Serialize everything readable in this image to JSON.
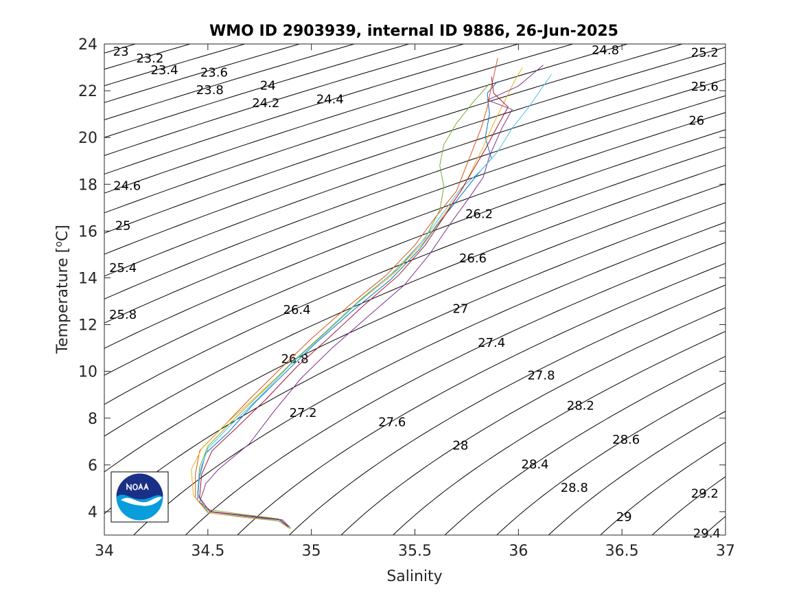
{
  "chart_data": {
    "type": "line",
    "title": "WMO ID 2903939, internal ID 9886, 26-Jun-2025",
    "xlabel": "Salinity",
    "ylabel_main": "Temperature [",
    "ylabel_sup": "o",
    "ylabel_end": "C]",
    "xlim": [
      34,
      37
    ],
    "ylim": [
      3,
      24
    ],
    "xticks": [
      34,
      34.5,
      35,
      35.5,
      36,
      36.5,
      37
    ],
    "xtick_labels": [
      "34",
      "34.5",
      "35",
      "35.5",
      "36",
      "36.5",
      "37"
    ],
    "yticks": [
      4,
      6,
      8,
      10,
      12,
      14,
      16,
      18,
      20,
      22,
      24
    ],
    "ytick_labels": [
      "4",
      "6",
      "8",
      "10",
      "12",
      "14",
      "16",
      "18",
      "20",
      "22",
      "24"
    ],
    "grid": false,
    "isopycnal_labels": [
      {
        "text": "23",
        "s": 34.08,
        "t": 23.65
      },
      {
        "text": "23.2",
        "s": 34.22,
        "t": 23.35
      },
      {
        "text": "23.4",
        "s": 34.29,
        "t": 22.85
      },
      {
        "text": "23.6",
        "s": 34.53,
        "t": 22.75
      },
      {
        "text": "23.8",
        "s": 34.51,
        "t": 22.0
      },
      {
        "text": "24",
        "s": 34.79,
        "t": 22.2
      },
      {
        "text": "24.2",
        "s": 34.78,
        "t": 21.45
      },
      {
        "text": "24.4",
        "s": 35.09,
        "t": 21.6
      },
      {
        "text": "24.8",
        "s": 36.42,
        "t": 23.7
      },
      {
        "text": "25.2",
        "s": 36.9,
        "t": 23.6
      },
      {
        "text": "25.6",
        "s": 36.9,
        "t": 22.15
      },
      {
        "text": "26",
        "s": 36.86,
        "t": 20.7
      },
      {
        "text": "24.6",
        "s": 34.11,
        "t": 17.9
      },
      {
        "text": "25",
        "s": 34.09,
        "t": 16.2
      },
      {
        "text": "25.4",
        "s": 34.09,
        "t": 14.4
      },
      {
        "text": "25.8",
        "s": 34.09,
        "t": 12.4
      },
      {
        "text": "26.2",
        "s": 35.81,
        "t": 16.7
      },
      {
        "text": "26.6",
        "s": 35.78,
        "t": 14.8
      },
      {
        "text": "26.4",
        "s": 34.93,
        "t": 12.6
      },
      {
        "text": "27",
        "s": 35.72,
        "t": 12.65
      },
      {
        "text": "27.4",
        "s": 35.87,
        "t": 11.2
      },
      {
        "text": "26.8",
        "s": 34.92,
        "t": 10.5
      },
      {
        "text": "27.8",
        "s": 36.11,
        "t": 9.8
      },
      {
        "text": "28.2",
        "s": 36.3,
        "t": 8.5
      },
      {
        "text": "27.2",
        "s": 34.96,
        "t": 8.2
      },
      {
        "text": "27.6",
        "s": 35.39,
        "t": 7.8
      },
      {
        "text": "28.6",
        "s": 36.52,
        "t": 7.05
      },
      {
        "text": "28",
        "s": 35.72,
        "t": 6.8
      },
      {
        "text": "28.4",
        "s": 36.08,
        "t": 6.0
      },
      {
        "text": "28.8",
        "s": 36.27,
        "t": 5.0
      },
      {
        "text": "29.2",
        "s": 36.9,
        "t": 4.75
      },
      {
        "text": "29",
        "s": 36.51,
        "t": 3.75
      },
      {
        "text": "29.4",
        "s": 36.91,
        "t": 3.05
      }
    ],
    "series": [
      {
        "color": "#0072BD",
        "points": [
          [
            34.89,
            3.3
          ],
          [
            34.85,
            3.6
          ],
          [
            34.7,
            3.75
          ],
          [
            34.5,
            3.95
          ],
          [
            34.45,
            4.5
          ],
          [
            34.46,
            5.5
          ],
          [
            34.49,
            6.5
          ],
          [
            34.6,
            7.4
          ],
          [
            34.72,
            8.6
          ],
          [
            34.88,
            10.0
          ],
          [
            35.02,
            11.2
          ],
          [
            35.2,
            12.6
          ],
          [
            35.38,
            13.9
          ],
          [
            35.52,
            15.2
          ],
          [
            35.62,
            16.4
          ],
          [
            35.72,
            17.5
          ],
          [
            35.8,
            18.4
          ],
          [
            35.87,
            19.1
          ],
          [
            35.84,
            20.0
          ],
          [
            35.86,
            21.0
          ],
          [
            35.85,
            21.9
          ],
          [
            35.9,
            22.4
          ]
        ]
      },
      {
        "color": "#D95319",
        "points": [
          [
            34.89,
            3.35
          ],
          [
            34.85,
            3.65
          ],
          [
            34.7,
            3.8
          ],
          [
            34.5,
            4.0
          ],
          [
            34.44,
            4.6
          ],
          [
            34.44,
            5.6
          ],
          [
            34.46,
            6.6
          ],
          [
            34.57,
            7.6
          ],
          [
            34.7,
            8.8
          ],
          [
            34.86,
            10.2
          ],
          [
            35.0,
            11.4
          ],
          [
            35.18,
            12.8
          ],
          [
            35.36,
            14.1
          ],
          [
            35.5,
            15.4
          ],
          [
            35.6,
            16.6
          ],
          [
            35.7,
            17.7
          ],
          [
            35.74,
            18.6
          ],
          [
            35.78,
            19.5
          ],
          [
            35.82,
            20.4
          ],
          [
            35.85,
            21.3
          ],
          [
            35.87,
            22.2
          ],
          [
            35.9,
            23.4
          ]
        ]
      },
      {
        "color": "#EDB120",
        "points": [
          [
            34.9,
            3.25
          ],
          [
            34.84,
            3.6
          ],
          [
            34.68,
            3.75
          ],
          [
            34.5,
            3.95
          ],
          [
            34.43,
            4.7
          ],
          [
            34.42,
            5.8
          ],
          [
            34.47,
            6.7
          ],
          [
            34.58,
            7.7
          ],
          [
            34.73,
            8.9
          ],
          [
            34.9,
            10.3
          ],
          [
            35.05,
            11.5
          ],
          [
            35.22,
            12.9
          ],
          [
            35.4,
            14.2
          ],
          [
            35.54,
            15.5
          ],
          [
            35.64,
            16.7
          ],
          [
            35.73,
            17.8
          ],
          [
            35.78,
            18.7
          ],
          [
            35.83,
            19.6
          ],
          [
            35.88,
            20.6
          ],
          [
            35.93,
            21.5
          ],
          [
            35.98,
            22.4
          ],
          [
            36.02,
            23.0
          ]
        ]
      },
      {
        "color": "#7E2F8E",
        "points": [
          [
            34.9,
            3.3
          ],
          [
            34.86,
            3.65
          ],
          [
            34.72,
            3.8
          ],
          [
            34.52,
            4.0
          ],
          [
            34.46,
            4.4
          ],
          [
            34.49,
            5.2
          ],
          [
            34.55,
            5.8
          ],
          [
            34.7,
            6.9
          ],
          [
            34.82,
            8.3
          ],
          [
            34.95,
            9.7
          ],
          [
            35.1,
            11.0
          ],
          [
            35.28,
            12.4
          ],
          [
            35.45,
            13.7
          ],
          [
            35.57,
            15.0
          ],
          [
            35.67,
            16.3
          ],
          [
            35.76,
            17.4
          ],
          [
            35.83,
            18.3
          ],
          [
            35.86,
            19.2
          ],
          [
            35.92,
            20.4
          ],
          [
            35.97,
            21.2
          ],
          [
            35.85,
            21.6
          ],
          [
            36.0,
            22.2
          ],
          [
            36.12,
            23.1
          ]
        ]
      },
      {
        "color": "#77AC30",
        "points": [
          [
            34.88,
            3.4
          ],
          [
            34.84,
            3.7
          ],
          [
            34.7,
            3.85
          ],
          [
            34.49,
            4.1
          ],
          [
            34.45,
            4.8
          ],
          [
            34.46,
            5.9
          ],
          [
            34.5,
            6.8
          ],
          [
            34.62,
            7.9
          ],
          [
            34.76,
            9.1
          ],
          [
            34.92,
            10.5
          ],
          [
            35.07,
            11.7
          ],
          [
            35.24,
            13.1
          ],
          [
            35.42,
            14.4
          ],
          [
            35.55,
            15.7
          ],
          [
            35.62,
            16.9
          ],
          [
            35.64,
            17.9
          ],
          [
            35.62,
            18.8
          ],
          [
            35.64,
            19.7
          ],
          [
            35.7,
            20.6
          ],
          [
            35.78,
            21.5
          ],
          [
            35.86,
            22.3
          ]
        ]
      },
      {
        "color": "#4DBEEE",
        "points": [
          [
            34.9,
            3.3
          ],
          [
            34.85,
            3.6
          ],
          [
            34.7,
            3.8
          ],
          [
            34.5,
            4.0
          ],
          [
            34.45,
            4.7
          ],
          [
            34.46,
            5.7
          ],
          [
            34.5,
            6.7
          ],
          [
            34.61,
            7.7
          ],
          [
            34.75,
            8.9
          ],
          [
            34.9,
            10.3
          ],
          [
            35.05,
            11.5
          ],
          [
            35.22,
            12.9
          ],
          [
            35.39,
            14.2
          ],
          [
            35.53,
            15.5
          ],
          [
            35.63,
            16.7
          ],
          [
            35.72,
            17.8
          ],
          [
            35.82,
            18.6
          ],
          [
            35.9,
            19.4
          ],
          [
            35.97,
            20.4
          ],
          [
            36.05,
            21.3
          ],
          [
            36.12,
            22.2
          ],
          [
            36.16,
            22.7
          ]
        ]
      },
      {
        "color": "#A2142F",
        "points": [
          [
            34.89,
            3.35
          ],
          [
            34.85,
            3.65
          ],
          [
            34.7,
            3.8
          ],
          [
            34.51,
            4.0
          ],
          [
            34.46,
            4.6
          ],
          [
            34.47,
            5.6
          ],
          [
            34.52,
            6.6
          ],
          [
            34.64,
            7.6
          ],
          [
            34.78,
            8.8
          ],
          [
            34.93,
            10.2
          ],
          [
            35.08,
            11.4
          ],
          [
            35.25,
            12.8
          ],
          [
            35.42,
            14.1
          ],
          [
            35.55,
            15.4
          ],
          [
            35.64,
            16.6
          ],
          [
            35.72,
            17.7
          ],
          [
            35.78,
            18.6
          ],
          [
            35.84,
            19.5
          ],
          [
            35.9,
            20.5
          ],
          [
            35.95,
            21.3
          ],
          [
            35.88,
            21.9
          ],
          [
            35.87,
            22.6
          ]
        ]
      }
    ]
  }
}
